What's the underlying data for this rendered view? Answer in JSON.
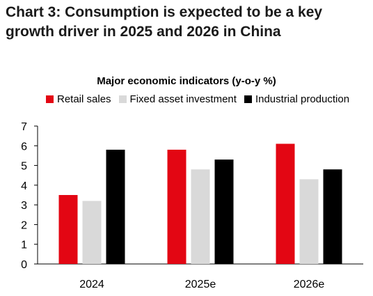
{
  "header": {
    "title_line1": "Chart 3: Consumption is expected to be a key",
    "title_line2": "growth driver in 2025 and 2026 in China"
  },
  "colors": {
    "retail": "#e30613",
    "fai": "#d9d9d9",
    "industrial": "#000000"
  },
  "chart_data": {
    "type": "bar",
    "title": "Major economic indicators (y-o-y %)",
    "categories": [
      "2024",
      "2025e",
      "2026e"
    ],
    "series": [
      {
        "name": "Retail sales",
        "values": [
          3.5,
          5.8,
          6.1
        ]
      },
      {
        "name": "Fixed asset investment",
        "values": [
          3.2,
          4.8,
          4.3
        ]
      },
      {
        "name": "Industrial production",
        "values": [
          5.8,
          5.3,
          4.8
        ]
      }
    ],
    "ylim": [
      0,
      7
    ],
    "yticks": [
      "0",
      "1",
      "2",
      "3",
      "4",
      "5",
      "6",
      "7"
    ],
    "grid": false,
    "legend_position": "top"
  }
}
